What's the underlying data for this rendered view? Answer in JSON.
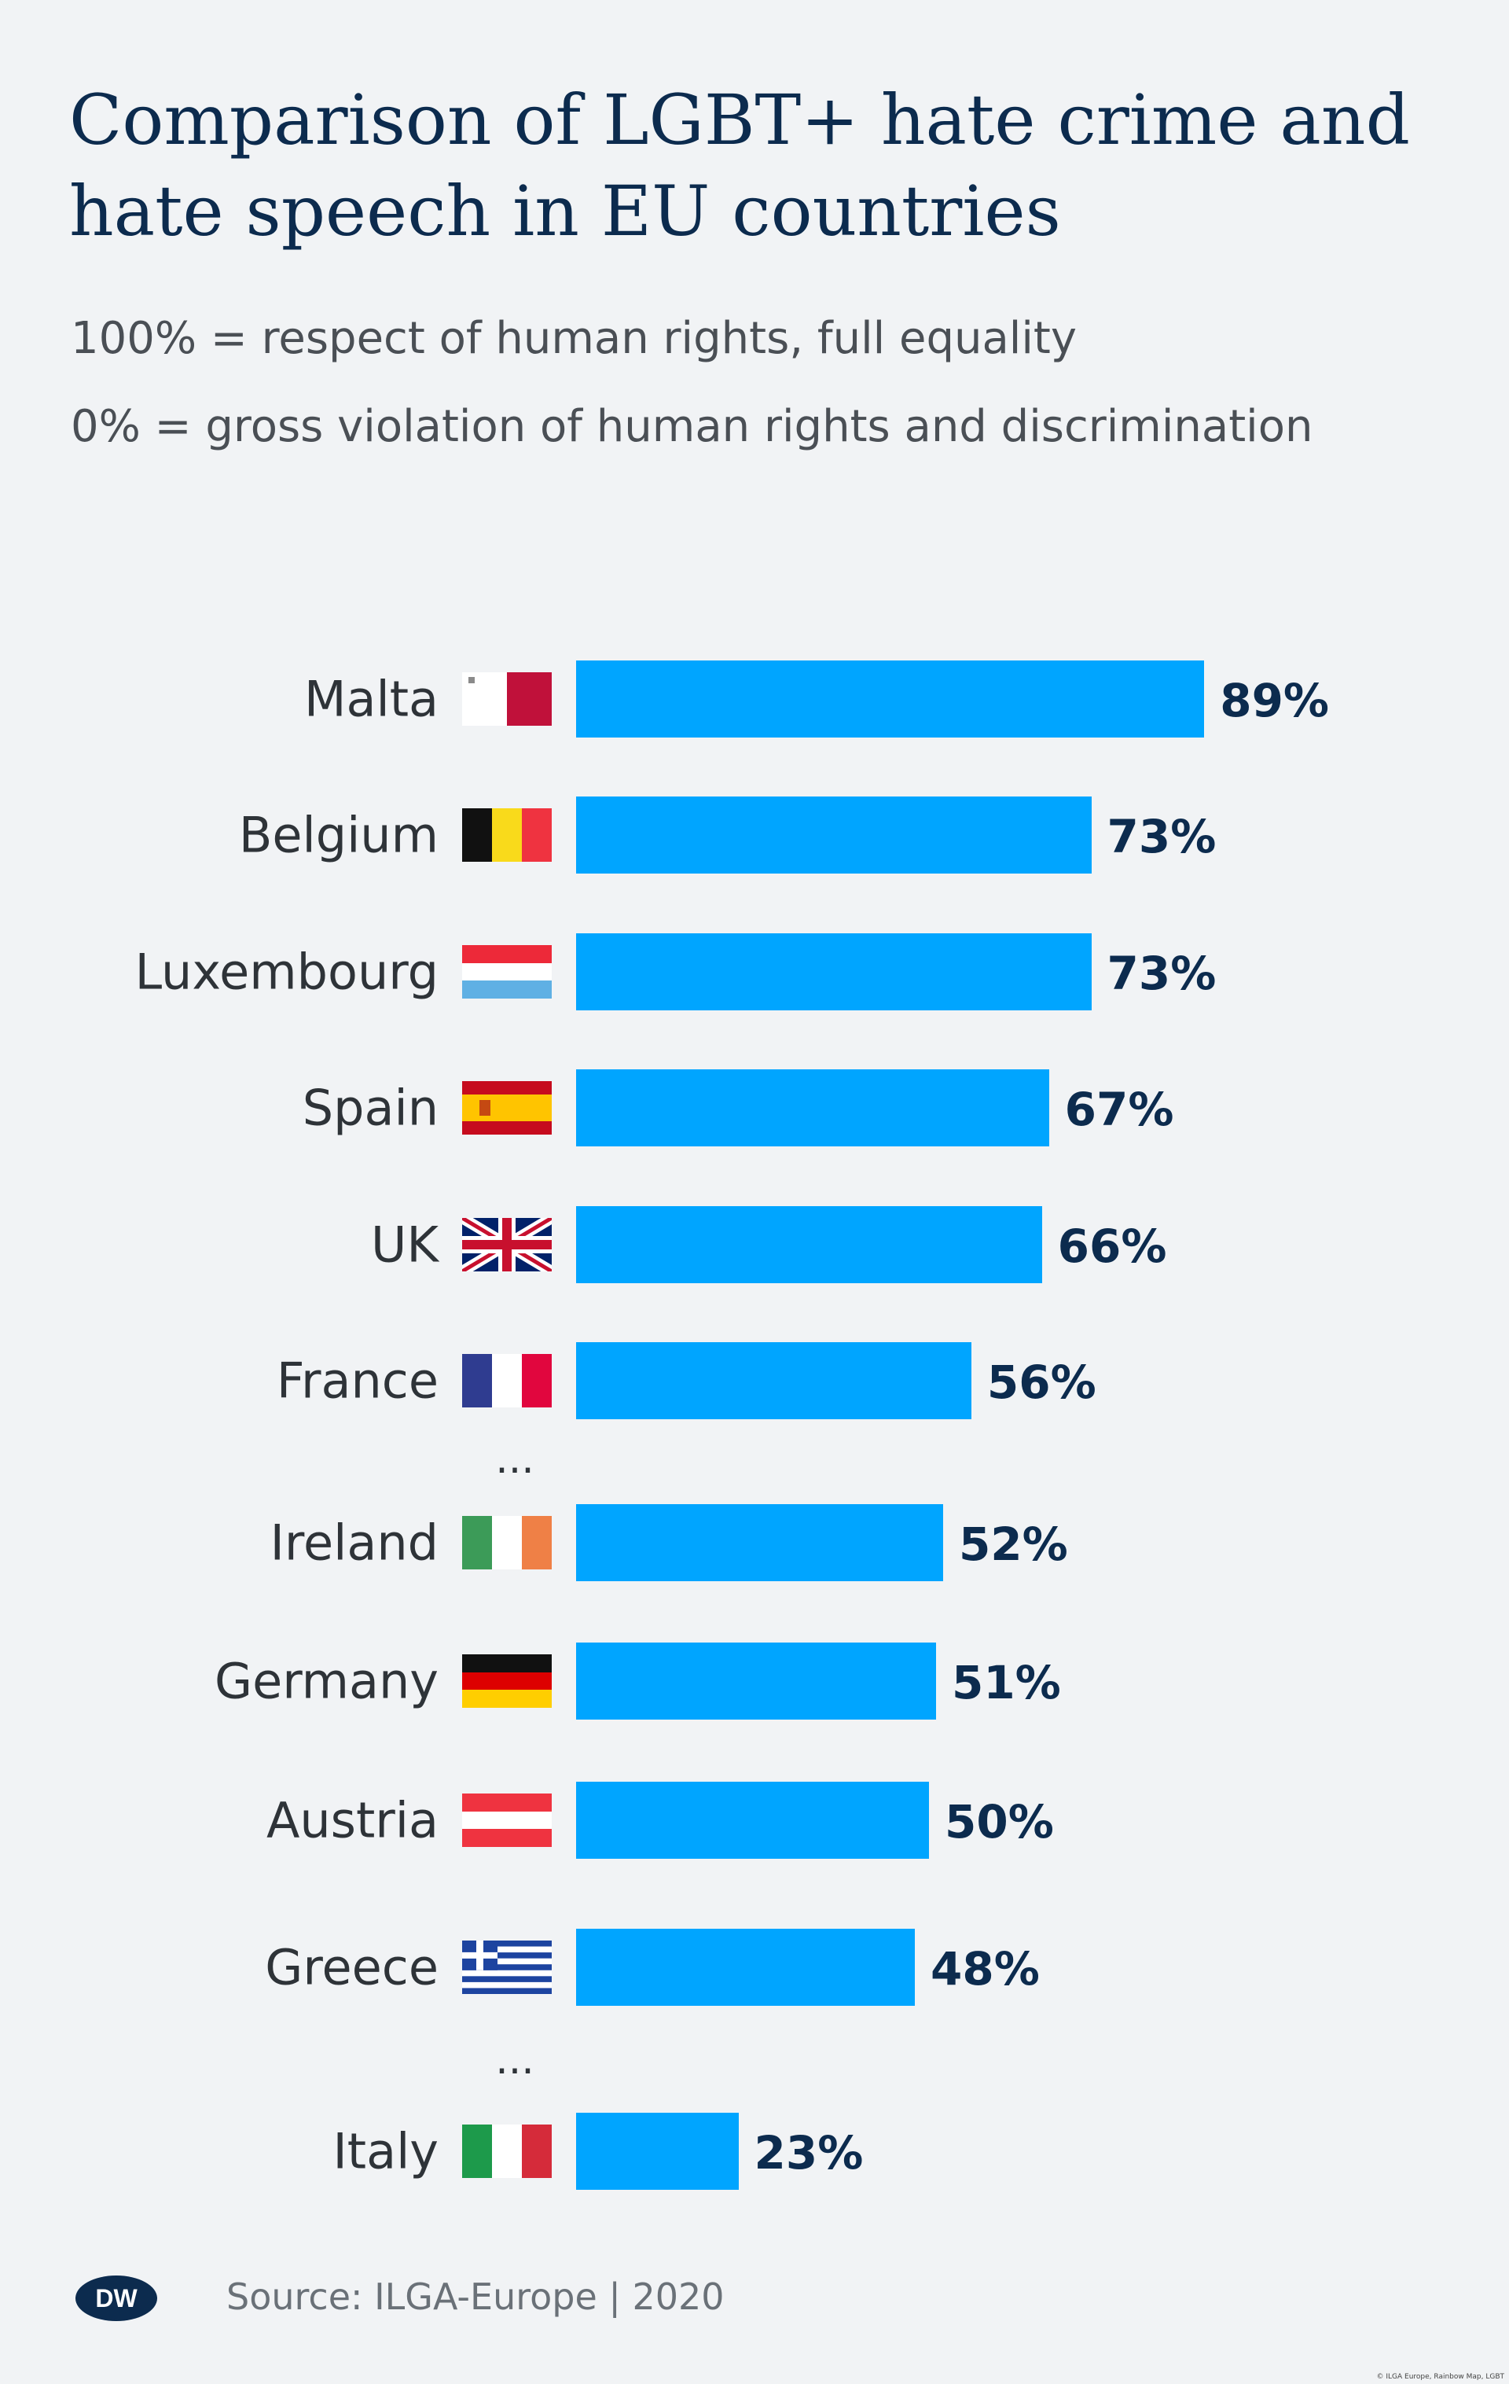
{
  "title_lines": [
    "Comparison of LGBT+ hate crime and",
    "hate speech in EU countries"
  ],
  "subtitle_lines": [
    "100% = respect of human rights, full equality",
    "0% = gross violation of human rights and discrimination"
  ],
  "source": "Source: ILGA-Europe | 2020",
  "copyright": "© ILGA Europe, Rainbow Map, LGBT",
  "logo_text": "DW",
  "ellipsis": "...",
  "colors": {
    "bar": "#00a5ff",
    "title": "#0c2b4e",
    "background": "#f1f3f5"
  },
  "chart_data": {
    "type": "bar",
    "orientation": "horizontal",
    "title": "Comparison of LGBT+ hate crime and hate speech in EU countries",
    "xlim": [
      0,
      100
    ],
    "unit": "%",
    "categories": [
      "Malta",
      "Belgium",
      "Luxembourg",
      "Spain",
      "UK",
      "France",
      "Ireland",
      "Germany",
      "Austria",
      "Greece",
      "Italy"
    ],
    "flags": [
      "malta-flag",
      "belgium-flag",
      "luxembourg-flag",
      "spain-flag",
      "uk-flag",
      "france-flag",
      "ireland-flag",
      "germany-flag",
      "austria-flag",
      "greece-flag",
      "italy-flag"
    ],
    "values": [
      89,
      73,
      73,
      67,
      66,
      56,
      52,
      51,
      50,
      48,
      23
    ],
    "value_labels": [
      "89%",
      "73%",
      "73%",
      "67%",
      "66%",
      "56%",
      "52%",
      "51%",
      "50%",
      "48%",
      "23%"
    ],
    "gaps_after": [
      "France",
      "Greece"
    ]
  }
}
